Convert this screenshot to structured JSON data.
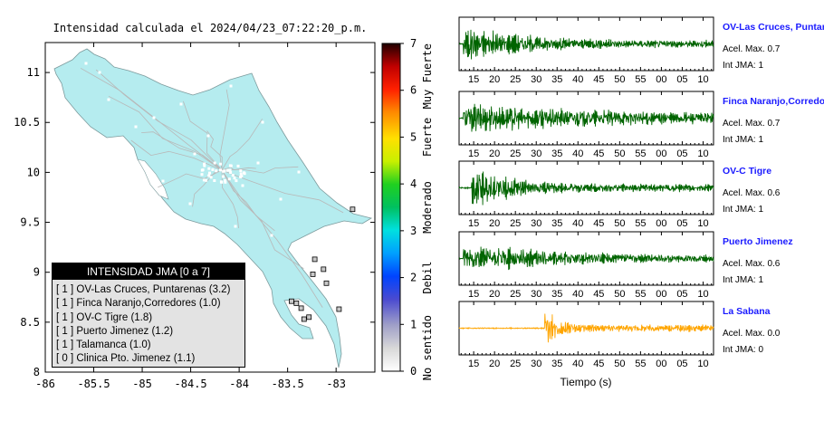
{
  "map": {
    "title": "Intensidad calculada el 2024/04/23_07:22:20_p.m.",
    "x_ticks": [
      "-86",
      "-85.5",
      "-85",
      "-84.5",
      "-84",
      "-83.5",
      "-83"
    ],
    "y_ticks": [
      "11",
      "10.5",
      "10",
      "9.5",
      "9",
      "8.5",
      "8"
    ],
    "xlim": [
      -86,
      -82.6
    ],
    "ylim": [
      8,
      11.3
    ],
    "land_color": "#b5ecef",
    "stations": [
      {
        "lon": -82.83,
        "lat": 9.63
      },
      {
        "lon": -83.22,
        "lat": 9.13
      },
      {
        "lon": -83.13,
        "lat": 9.03
      },
      {
        "lon": -83.24,
        "lat": 8.98
      },
      {
        "lon": -83.1,
        "lat": 8.89
      },
      {
        "lon": -83.46,
        "lat": 8.71
      },
      {
        "lon": -83.41,
        "lat": 8.69
      },
      {
        "lon": -83.36,
        "lat": 8.64
      },
      {
        "lon": -83.28,
        "lat": 8.55
      },
      {
        "lon": -82.97,
        "lat": 8.63
      },
      {
        "lon": -83.33,
        "lat": 8.53
      }
    ]
  },
  "colorbar": {
    "ticks": [
      "0",
      "1",
      "2",
      "3",
      "4",
      "5",
      "6",
      "7"
    ],
    "labels": [
      "No sentido",
      "Debil",
      "Moderado",
      "Fuerte",
      "Muy Fuerte"
    ]
  },
  "legend": {
    "title": "INTENSIDAD JMA [0 a 7]",
    "items": [
      "[ 1 ]  OV-Las Cruces, Puntarenas (3.2)",
      "[ 1 ]  Finca Naranjo,Corredores (1.0)",
      "[ 1 ]  OV-C Tigre (1.8)",
      "[ 1 ]  Puerto Jimenez (1.2)",
      "[ 1 ]  Talamanca (1.0)",
      "[ 0 ]  Clinica Pto. Jimenez (1.1)"
    ]
  },
  "chart_data": {
    "type": "line",
    "x_ticks": [
      "15",
      "20",
      "25",
      "30",
      "35",
      "40",
      "45",
      "50",
      "55",
      "00",
      "05",
      "10"
    ],
    "xlabel": "Tiempo (s)",
    "series": [
      {
        "name": "OV-Las Cruces, Puntarenas",
        "acel": "Acel. Max. 0.7",
        "jma": "Int JMA: 1",
        "color": "#006400",
        "onset": 12.5,
        "peak": 0.95,
        "decay": 14
      },
      {
        "name": "Finca Naranjo,Corredores",
        "acel": "Acel. Max. 0.7",
        "jma": "Int JMA: 1",
        "color": "#006400",
        "onset": 12.5,
        "peak": 0.8,
        "decay": 40
      },
      {
        "name": "OV-C Tigre",
        "acel": "Acel. Max. 0.6",
        "jma": "Int JMA: 1",
        "color": "#006400",
        "onset": 14.5,
        "peak": 1.0,
        "decay": 10
      },
      {
        "name": "Puerto Jimenez",
        "acel": "Acel. Max. 0.6",
        "jma": "Int JMA: 1",
        "color": "#006400",
        "onset": 12.5,
        "peak": 0.75,
        "decay": 25
      },
      {
        "name": "La Sabana",
        "acel": "Acel. Max. 0.0",
        "jma": "Int JMA: 0",
        "color": "#ffa500",
        "onset": 32,
        "peak": 1.0,
        "decay": 3
      }
    ]
  }
}
